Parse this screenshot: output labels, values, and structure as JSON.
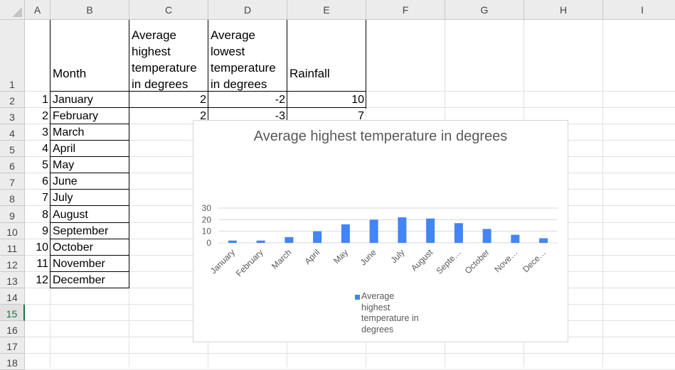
{
  "sheet": {
    "columns": [
      "A",
      "B",
      "C",
      "D",
      "E",
      "F",
      "G",
      "H",
      "I"
    ],
    "rows": [
      "1",
      "2",
      "3",
      "4",
      "5",
      "6",
      "7",
      "8",
      "9",
      "10",
      "11",
      "12",
      "13",
      "14",
      "15",
      "16",
      "17",
      "18"
    ],
    "active_row": "15",
    "header_row": {
      "b": "Month",
      "c": "Average highest temperature in degrees",
      "d": "Average lowest temperature in degrees",
      "e": "Rainfall"
    },
    "data_rows": [
      {
        "a": "1",
        "b": "January",
        "c": "2",
        "d": "-2",
        "e": "10"
      },
      {
        "a": "2",
        "b": "February",
        "c": "2",
        "d": "-3",
        "e": "7"
      },
      {
        "a": "3",
        "b": "March",
        "c": "",
        "d": "",
        "e": ""
      },
      {
        "a": "4",
        "b": "April",
        "c": "",
        "d": "",
        "e": ""
      },
      {
        "a": "5",
        "b": "May",
        "c": "",
        "d": "",
        "e": ""
      },
      {
        "a": "6",
        "b": "June",
        "c": "",
        "d": "",
        "e": ""
      },
      {
        "a": "7",
        "b": "July",
        "c": "",
        "d": "",
        "e": ""
      },
      {
        "a": "8",
        "b": "August",
        "c": "",
        "d": "",
        "e": ""
      },
      {
        "a": "9",
        "b": "September",
        "c": "",
        "d": "",
        "e": ""
      },
      {
        "a": "10",
        "b": "October",
        "c": "",
        "d": "",
        "e": ""
      },
      {
        "a": "11",
        "b": "November",
        "c": "",
        "d": "",
        "e": ""
      },
      {
        "a": "12",
        "b": "December",
        "c": "",
        "d": "",
        "e": ""
      }
    ]
  },
  "chart_data": {
    "type": "bar",
    "title": "Average highest temperature in degrees",
    "categories": [
      "January",
      "February",
      "March",
      "April",
      "May",
      "June",
      "July",
      "August",
      "Septe…",
      "October",
      "Nove…",
      "Dece…"
    ],
    "series": [
      {
        "name": "Average highest temperature in degrees",
        "values": [
          2,
          2,
          5,
          10,
          16,
          20,
          22,
          21,
          17,
          12,
          7,
          4
        ]
      }
    ],
    "y_ticks": [
      "0",
      "10",
      "20",
      "30"
    ],
    "ylim": [
      0,
      30
    ],
    "grid": true,
    "legend_position": "bottom",
    "colors": {
      "bar": "#4285f4",
      "grid": "#d9d9d9",
      "text": "#595959"
    }
  }
}
